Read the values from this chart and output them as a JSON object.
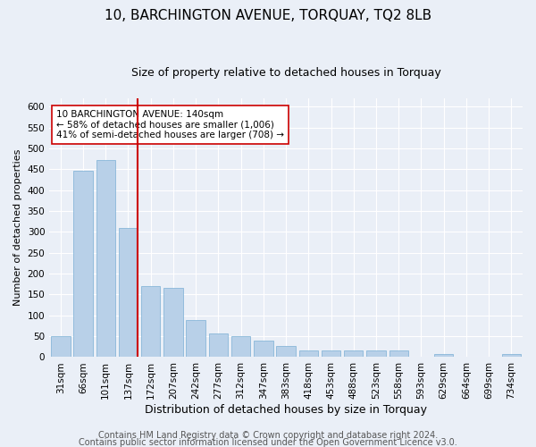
{
  "title": "10, BARCHINGTON AVENUE, TORQUAY, TQ2 8LB",
  "subtitle": "Size of property relative to detached houses in Torquay",
  "xlabel": "Distribution of detached houses by size in Torquay",
  "ylabel": "Number of detached properties",
  "categories": [
    "31sqm",
    "66sqm",
    "101sqm",
    "137sqm",
    "172sqm",
    "207sqm",
    "242sqm",
    "277sqm",
    "312sqm",
    "347sqm",
    "383sqm",
    "418sqm",
    "453sqm",
    "488sqm",
    "523sqm",
    "558sqm",
    "593sqm",
    "629sqm",
    "664sqm",
    "699sqm",
    "734sqm"
  ],
  "values": [
    50,
    447,
    473,
    310,
    170,
    165,
    88,
    57,
    50,
    40,
    27,
    17,
    17,
    17,
    17,
    15,
    0,
    7,
    0,
    0,
    7
  ],
  "bar_color": "#b8d0e8",
  "bar_edge_color": "#7aafd4",
  "vline_color": "#cc0000",
  "annotation_text": "10 BARCHINGTON AVENUE: 140sqm\n← 58% of detached houses are smaller (1,006)\n41% of semi-detached houses are larger (708) →",
  "annotation_box_color": "#ffffff",
  "annotation_box_edge": "#cc0000",
  "ylim": [
    0,
    620
  ],
  "yticks": [
    0,
    50,
    100,
    150,
    200,
    250,
    300,
    350,
    400,
    450,
    500,
    550,
    600
  ],
  "footer1": "Contains HM Land Registry data © Crown copyright and database right 2024.",
  "footer2": "Contains public sector information licensed under the Open Government Licence v3.0.",
  "bg_color": "#eaeff7",
  "plot_bg_color": "#eaeff7",
  "grid_color": "#ffffff",
  "title_fontsize": 11,
  "subtitle_fontsize": 9,
  "xlabel_fontsize": 9,
  "ylabel_fontsize": 8,
  "tick_fontsize": 7.5,
  "footer_fontsize": 7,
  "ann_fontsize": 7.5
}
